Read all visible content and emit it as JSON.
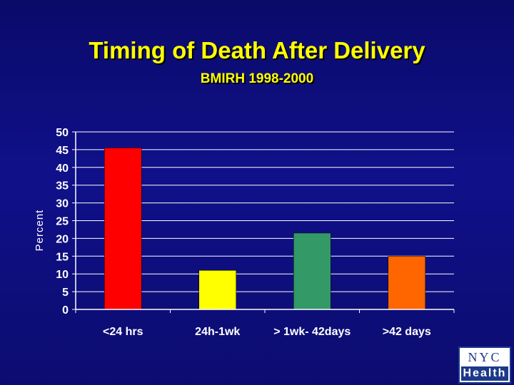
{
  "title": "Timing of Death After Delivery",
  "subtitle": "BMIRH 1998-2000",
  "logo": {
    "top": "NYC",
    "bottom": "Health"
  },
  "colors": {
    "background": "#0c0c7a",
    "title": "#ffff00",
    "axis_text": "#ffffff",
    "grid": "#ffffff"
  },
  "chart_data": {
    "type": "bar",
    "categories": [
      "<24 hrs",
      "24h-1wk",
      "> 1wk- 42days",
      ">42 days"
    ],
    "values": [
      45.5,
      11,
      21.5,
      15
    ],
    "bar_colors": [
      "#ff0000",
      "#ffff00",
      "#339966",
      "#ff6600"
    ],
    "ylabel": "Percent",
    "xlabel": "",
    "ylim": [
      0,
      50
    ],
    "yticks": [
      0,
      5,
      10,
      15,
      20,
      25,
      30,
      35,
      40,
      45,
      50
    ],
    "grid": true,
    "legend": "none"
  }
}
